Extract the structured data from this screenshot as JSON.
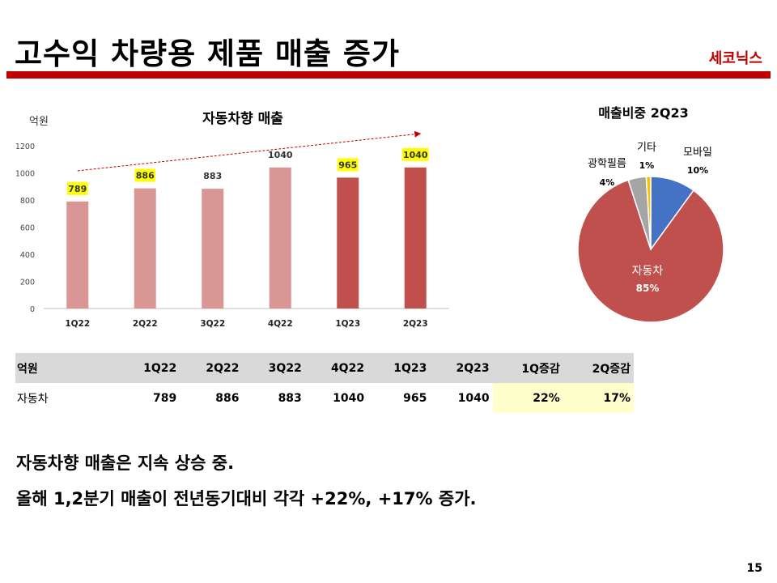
{
  "header": {
    "title": "고수익 차량용 제품 매출 증가",
    "brand": "세코닉스",
    "accent_color": "#c00000"
  },
  "chart_data": [
    {
      "type": "bar",
      "title": "자동차향 매출",
      "unit_label": "억원",
      "categories": [
        "1Q22",
        "2Q22",
        "3Q22",
        "4Q22",
        "1Q23",
        "2Q23"
      ],
      "values": [
        789,
        886,
        883,
        1040,
        965,
        1040
      ],
      "value_labels": [
        "789",
        "886",
        "883",
        "1040",
        "965",
        "1040"
      ],
      "highlighted_labels": [
        true,
        true,
        false,
        false,
        true,
        true
      ],
      "bar_colors": [
        "#d99694",
        "#d99694",
        "#d99694",
        "#d99694",
        "#c0504d",
        "#c0504d"
      ],
      "ylim": [
        0,
        1200
      ],
      "yticks": [
        "0",
        "200",
        "400",
        "600",
        "800",
        "1000",
        "1200"
      ],
      "trend_arrow": true
    },
    {
      "type": "pie",
      "title": "매출비중 2Q23",
      "slices": [
        {
          "name": "모바일",
          "value": 10,
          "label": "10%",
          "color": "#4472c4"
        },
        {
          "name": "자동차",
          "value": 85,
          "label": "85%",
          "color": "#c0504d"
        },
        {
          "name": "광학필름",
          "value": 4,
          "label": "4%",
          "color": "#a5a5a5"
        },
        {
          "name": "기타",
          "value": 1,
          "label": "1%",
          "color": "#ffc000"
        }
      ]
    }
  ],
  "table": {
    "headers": [
      "억원",
      "1Q22",
      "2Q22",
      "3Q22",
      "4Q22",
      "1Q23",
      "2Q23",
      "1Q증감",
      "2Q증감"
    ],
    "rows": [
      [
        "자동차",
        "789",
        "886",
        "883",
        "1040",
        "965",
        "1040",
        "22%",
        "17%"
      ]
    ]
  },
  "notes": [
    "자동차향 매출은 지속 상승 중.",
    "올해 1,2분기 매출이 전년동기대비 각각 +22%, +17% 증가."
  ],
  "page_number": "15"
}
